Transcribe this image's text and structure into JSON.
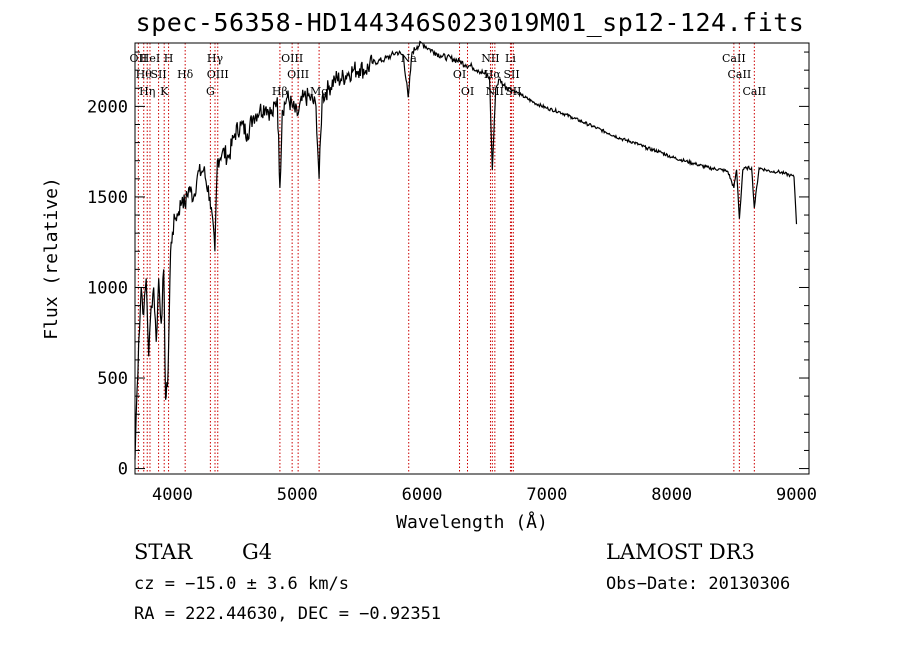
{
  "chart_data": {
    "type": "line",
    "title": "spec-56358-HD144346S023019M01_sp12-124.fits",
    "xlabel": "Wavelength (Å)",
    "ylabel": "Flux (relative)",
    "xlim": [
      3700,
      9100
    ],
    "ylim": [
      -30,
      2350
    ],
    "x_ticks": [
      4000,
      5000,
      6000,
      7000,
      8000,
      9000
    ],
    "y_ticks": [
      0,
      500,
      1000,
      1500,
      2000
    ],
    "x_minor_step": 200,
    "y_minor_step": 100,
    "series": [
      {
        "name": "spectrum",
        "color": "#000000",
        "x": [
          3700,
          3710,
          3730,
          3750,
          3770,
          3790,
          3810,
          3830,
          3850,
          3870,
          3890,
          3910,
          3930,
          3945,
          3960,
          3970,
          3985,
          4000,
          4020,
          4050,
          4080,
          4100,
          4130,
          4170,
          4200,
          4250,
          4300,
          4340,
          4360,
          4400,
          4450,
          4500,
          4550,
          4600,
          4650,
          4700,
          4750,
          4800,
          4840,
          4861,
          4880,
          4920,
          4960,
          5000,
          5050,
          5100,
          5150,
          5175,
          5200,
          5250,
          5300,
          5350,
          5400,
          5450,
          5500,
          5550,
          5600,
          5650,
          5700,
          5750,
          5800,
          5850,
          5889,
          5896,
          5920,
          5960,
          6000,
          6050,
          6100,
          6150,
          6200,
          6250,
          6300,
          6350,
          6400,
          6450,
          6500,
          6540,
          6563,
          6590,
          6620,
          6650,
          6700,
          6750,
          6800,
          6900,
          7000,
          7100,
          7200,
          7300,
          7400,
          7500,
          7600,
          7700,
          7800,
          7900,
          8000,
          8100,
          8200,
          8300,
          8400,
          8450,
          8498,
          8520,
          8542,
          8570,
          8600,
          8640,
          8662,
          8700,
          8750,
          8800,
          8850,
          8900,
          8950,
          8980,
          9000
        ],
        "y": [
          50,
          300,
          700,
          1000,
          850,
          1050,
          620,
          900,
          1000,
          700,
          1050,
          800,
          1100,
          380,
          450,
          700,
          1200,
          1300,
          1380,
          1420,
          1500,
          1450,
          1550,
          1500,
          1620,
          1650,
          1500,
          1200,
          1700,
          1750,
          1720,
          1850,
          1900,
          1850,
          1950,
          1980,
          2000,
          1950,
          2050,
          1550,
          1980,
          2050,
          2000,
          1950,
          2050,
          2050,
          2000,
          1600,
          2050,
          2100,
          2150,
          2150,
          2180,
          2200,
          2210,
          2200,
          2240,
          2250,
          2260,
          2280,
          2300,
          2280,
          2050,
          2100,
          2300,
          2330,
          2350,
          2320,
          2300,
          2280,
          2270,
          2260,
          2250,
          2230,
          2220,
          2200,
          2180,
          2160,
          1650,
          2100,
          2150,
          2120,
          2100,
          2080,
          2060,
          2020,
          1990,
          1970,
          1940,
          1910,
          1880,
          1850,
          1820,
          1800,
          1770,
          1750,
          1720,
          1700,
          1680,
          1660,
          1650,
          1640,
          1550,
          1650,
          1380,
          1650,
          1660,
          1660,
          1440,
          1660,
          1650,
          1640,
          1640,
          1630,
          1620,
          1610,
          1350
        ]
      }
    ],
    "line_markers": [
      {
        "wl": 3727,
        "label": "OII"
      },
      {
        "wl": 3770,
        "label": "Hθ"
      },
      {
        "wl": 3798,
        "label": "Hη"
      },
      {
        "wl": 3820,
        "label": "HeI"
      },
      {
        "wl": 3889,
        "label": "SII"
      },
      {
        "wl": 3934,
        "label": "K"
      },
      {
        "wl": 3969,
        "label": "H"
      },
      {
        "wl": 4102,
        "label": "Hδ"
      },
      {
        "wl": 4304,
        "label": "G"
      },
      {
        "wl": 4341,
        "label": "Hγ"
      },
      {
        "wl": 4363,
        "label": "OIII"
      },
      {
        "wl": 4861,
        "label": "Hβ"
      },
      {
        "wl": 4959,
        "label": "OIII"
      },
      {
        "wl": 5007,
        "label": "OIII"
      },
      {
        "wl": 5175,
        "label": "Mg"
      },
      {
        "wl": 5893,
        "label": "Na"
      },
      {
        "wl": 6300,
        "label": "OI"
      },
      {
        "wl": 6364,
        "label": "OI"
      },
      {
        "wl": 6548,
        "label": "NII"
      },
      {
        "wl": 6563,
        "label": "Hα"
      },
      {
        "wl": 6583,
        "label": "NII"
      },
      {
        "wl": 6708,
        "label": "Li"
      },
      {
        "wl": 6717,
        "label": "SII"
      },
      {
        "wl": 6731,
        "label": "SII"
      },
      {
        "wl": 8498,
        "label": "CaII"
      },
      {
        "wl": 8542,
        "label": "CaII"
      },
      {
        "wl": 8662,
        "label": "CaII"
      }
    ],
    "marker_color": "#cc0000"
  },
  "info": {
    "object_class": "STAR",
    "subclass": "G4",
    "survey": "LAMOST DR3",
    "velocity": "cz = −15.0 ± 3.6 km/s",
    "obs_date": "Obs−Date: 20130306",
    "coords": "RA = 222.44630, DEC =  −0.92351"
  }
}
